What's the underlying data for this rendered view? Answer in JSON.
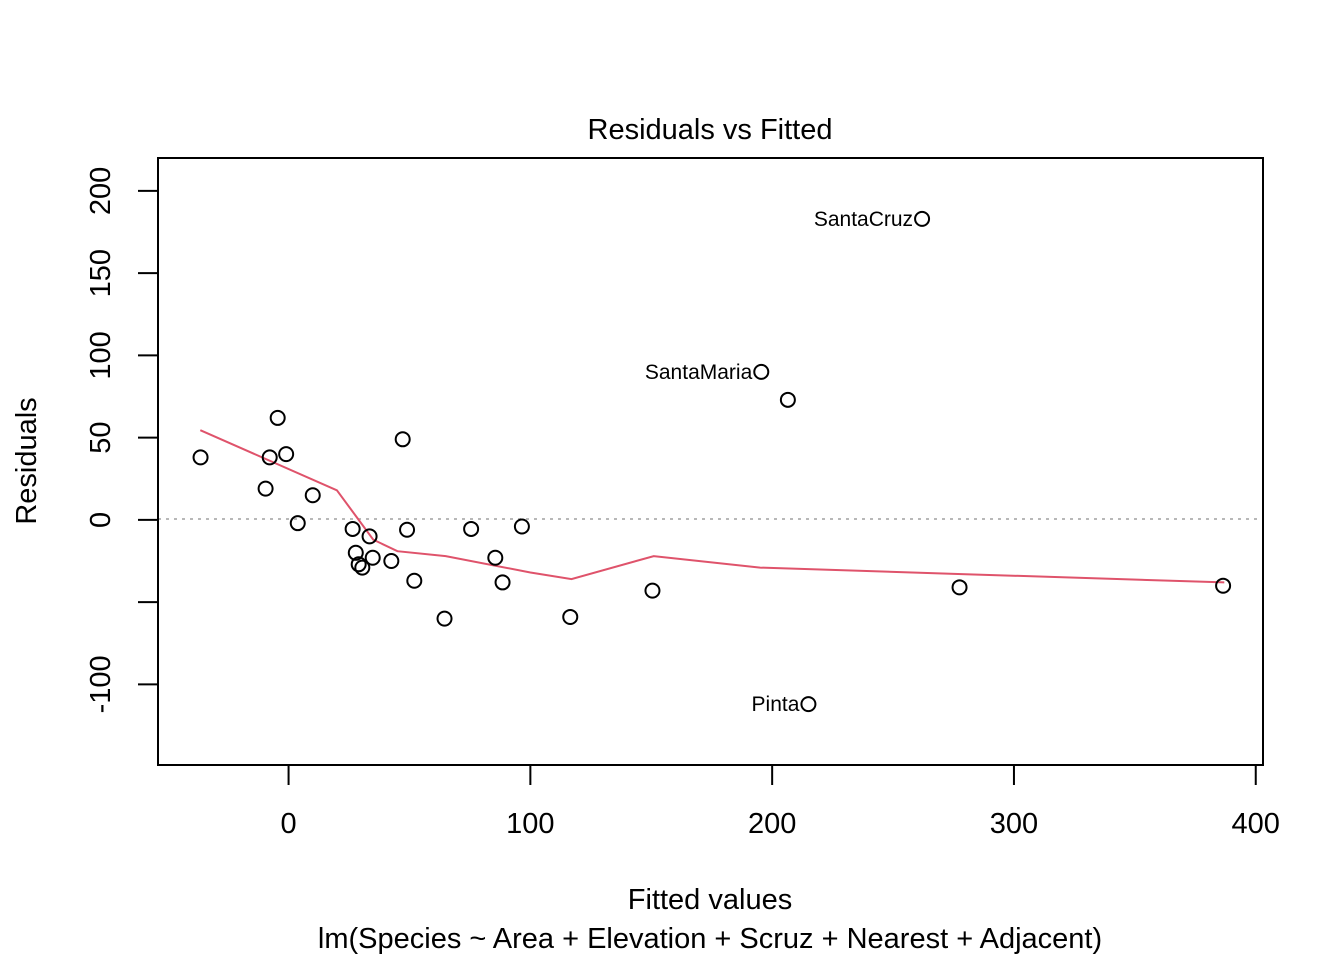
{
  "chart_data": {
    "type": "scatter",
    "title": "Residuals vs Fitted",
    "xlabel": "Fitted values",
    "subtitle": "lm(Species ~ Area + Elevation + Scruz + Nearest + Adjacent)",
    "ylabel": "Residuals",
    "xlim": [
      -54,
      403
    ],
    "ylim": [
      -149,
      220
    ],
    "x_ticks": [
      0,
      100,
      200,
      300,
      400
    ],
    "x_tick_labels": [
      "0",
      "100",
      "200",
      "300",
      "400"
    ],
    "y_ticks": [
      -100,
      -50,
      0,
      50,
      100,
      150,
      200
    ],
    "y_tick_labels": [
      "-100",
      "",
      "0",
      "50",
      "100",
      "150",
      "200"
    ],
    "reference_line": {
      "y": 0,
      "color": "#b3b3b3",
      "style": "dotted"
    },
    "smoother": {
      "color": "#DF536B",
      "x": [
        -36.5,
        20,
        28,
        35,
        45,
        65,
        100,
        117,
        151,
        195,
        280,
        387
      ],
      "y": [
        54.5,
        18,
        2,
        -12,
        -19,
        -22,
        -32,
        -36,
        -22,
        -29,
        -33,
        -38
      ]
    },
    "points": [
      {
        "x": -36.4,
        "y": 38
      },
      {
        "x": -7.8,
        "y": 38
      },
      {
        "x": -9.5,
        "y": 19
      },
      {
        "x": -4.5,
        "y": 62
      },
      {
        "x": -1,
        "y": 40
      },
      {
        "x": 3.8,
        "y": -2
      },
      {
        "x": 10,
        "y": 15
      },
      {
        "x": 26.5,
        "y": -5.5
      },
      {
        "x": 27.8,
        "y": -20
      },
      {
        "x": 29,
        "y": -27
      },
      {
        "x": 30.5,
        "y": -29
      },
      {
        "x": 33.5,
        "y": -10
      },
      {
        "x": 34.8,
        "y": -23
      },
      {
        "x": 42.5,
        "y": -25
      },
      {
        "x": 47.2,
        "y": 49
      },
      {
        "x": 49,
        "y": -6
      },
      {
        "x": 52,
        "y": -37
      },
      {
        "x": 64.5,
        "y": -60
      },
      {
        "x": 75.5,
        "y": -5.5
      },
      {
        "x": 85.5,
        "y": -23
      },
      {
        "x": 88.5,
        "y": -38
      },
      {
        "x": 96.5,
        "y": -4
      },
      {
        "x": 116.5,
        "y": -59
      },
      {
        "x": 150.5,
        "y": -43
      },
      {
        "x": 195.5,
        "y": 90,
        "label": "SantaMaria"
      },
      {
        "x": 206.5,
        "y": 73
      },
      {
        "x": 215,
        "y": -112,
        "label": "Pinta"
      },
      {
        "x": 262,
        "y": 183,
        "label": "SantaCruz"
      },
      {
        "x": 277.5,
        "y": -41
      },
      {
        "x": 386.5,
        "y": -40
      }
    ]
  }
}
